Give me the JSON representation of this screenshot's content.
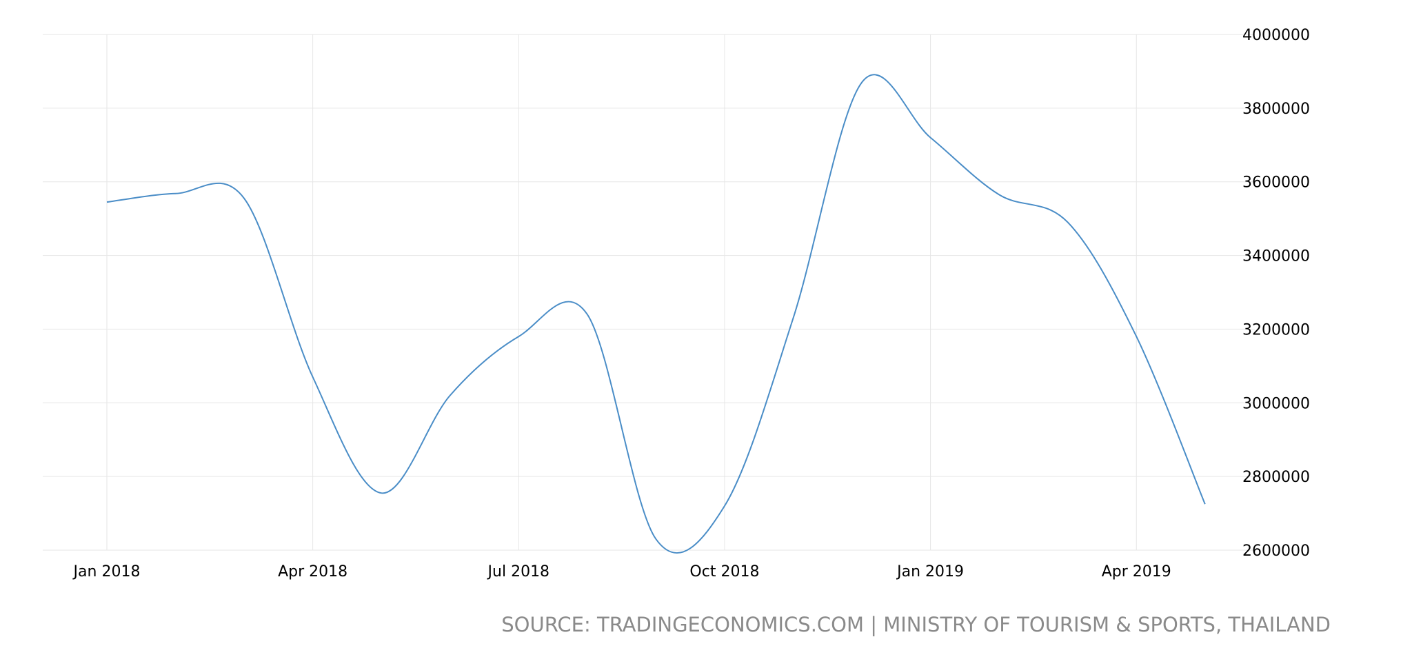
{
  "chart_data": {
    "type": "line",
    "title": "",
    "xlabel": "",
    "ylabel": "",
    "x": [
      "2018-01",
      "2018-02",
      "2018-03",
      "2018-04",
      "2018-05",
      "2018-06",
      "2018-07",
      "2018-08",
      "2018-09",
      "2018-10",
      "2018-11",
      "2018-12",
      "2019-01",
      "2019-02",
      "2019-03",
      "2019-04",
      "2019-05"
    ],
    "series": [
      {
        "values": [
          3545000,
          3568000,
          3555000,
          3070000,
          2755000,
          3020000,
          3180000,
          3240000,
          2630000,
          2720000,
          3230000,
          3870000,
          3720000,
          3565000,
          3490000,
          3180000,
          2725000
        ],
        "color": "#4a8dc7"
      }
    ],
    "x_ticks": [
      {
        "at": "2018-01",
        "label": "Jan 2018"
      },
      {
        "at": "2018-04",
        "label": "Apr 2018"
      },
      {
        "at": "2018-07",
        "label": "Jul 2018"
      },
      {
        "at": "2018-10",
        "label": "Oct 2018"
      },
      {
        "at": "2019-01",
        "label": "Jan 2019"
      },
      {
        "at": "2019-04",
        "label": "Apr 2019"
      }
    ],
    "y_ticks": [
      2600000,
      2800000,
      3000000,
      3200000,
      3400000,
      3600000,
      3800000,
      4000000
    ],
    "ylim": [
      2600000,
      4000000
    ],
    "y_axis_position": "right",
    "grid": true,
    "grid_color": "#e6e6e6",
    "source": "SOURCE: TRADINGECONOMICS.COM | MINISTRY OF TOURISM & SPORTS, THAILAND"
  }
}
